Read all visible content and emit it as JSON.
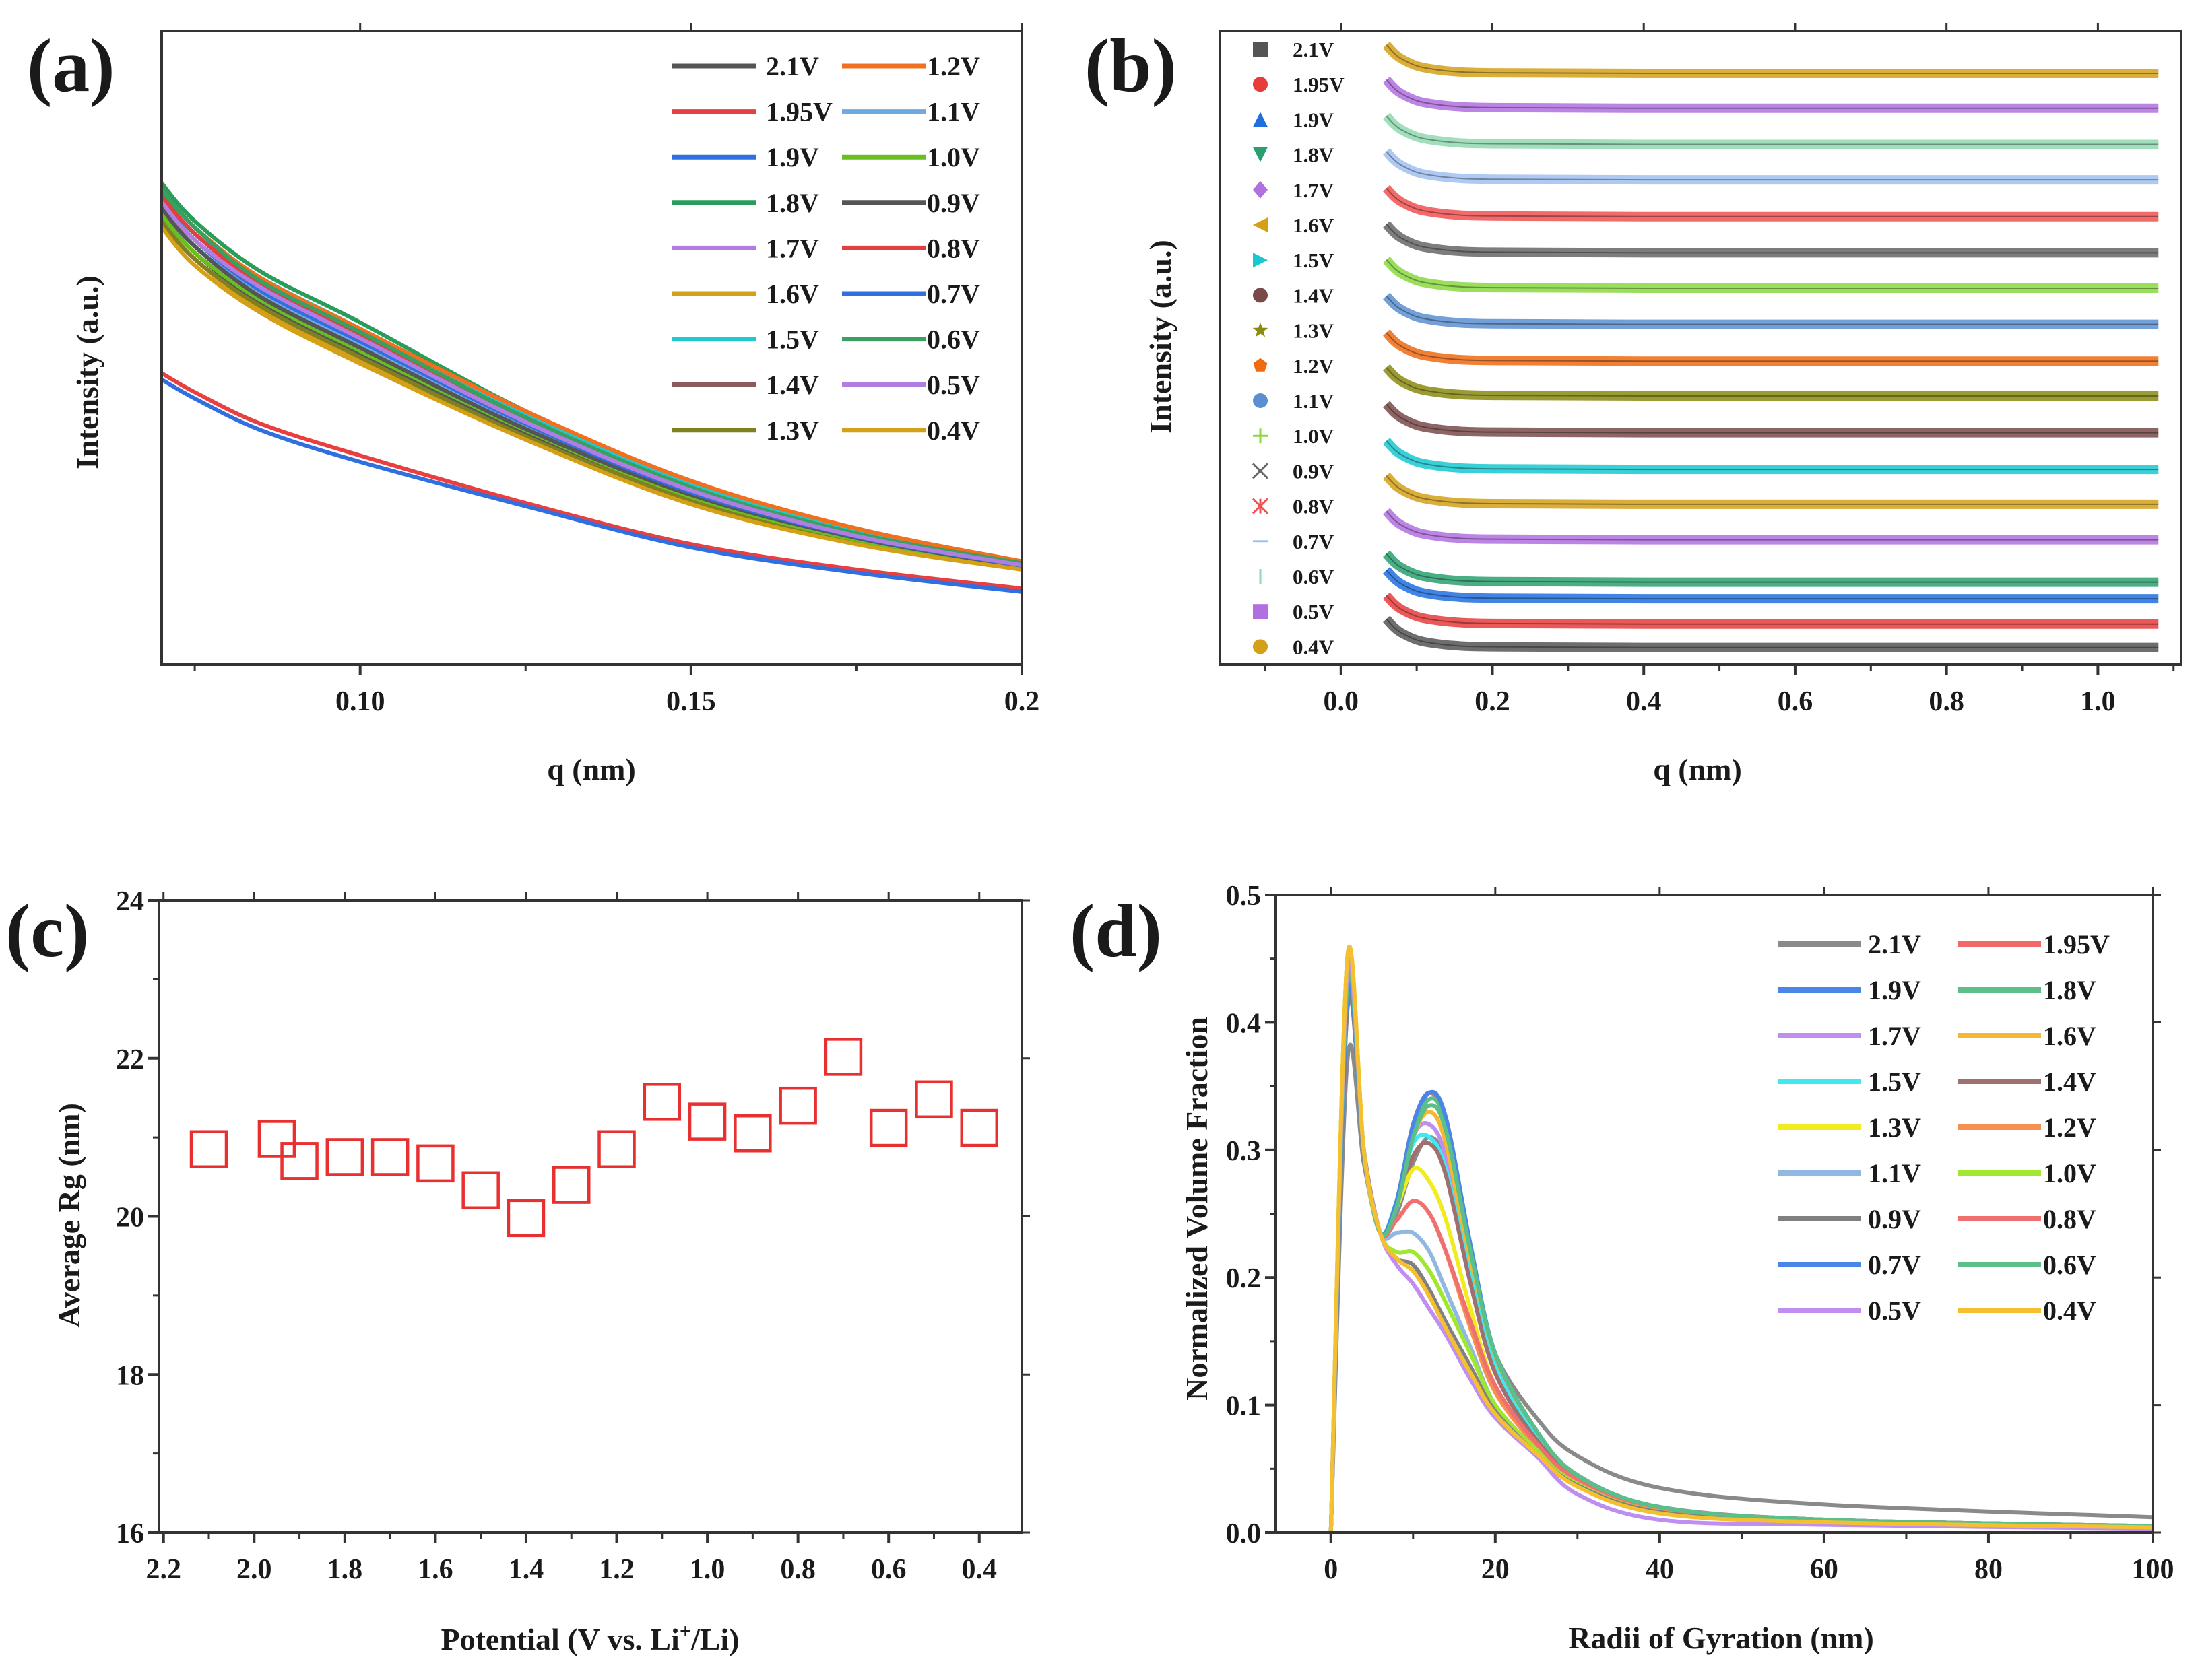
{
  "panel_labels": {
    "a": "(a)",
    "b": "(b)",
    "c": "(c)",
    "d": "(d)"
  },
  "chart_data": [
    {
      "id": "a",
      "type": "line",
      "xlabel": "q (nm)",
      "ylabel": "Intensity (a.u.)",
      "xlim": [
        0.07,
        0.2
      ],
      "ylim": [
        0,
        1
      ],
      "xticks": [
        0.1,
        0.15,
        0.2
      ],
      "xtick_labels": [
        "0.10",
        "0.15",
        "0.2"
      ],
      "legend_placement": "top-right",
      "x": [
        0.07,
        0.075,
        0.085,
        0.1,
        0.125,
        0.15,
        0.175,
        0.2
      ],
      "series": [
        {
          "name": "2.1V",
          "color": "#555555",
          "values": [
            0.71,
            0.65,
            0.57,
            0.49,
            0.365,
            0.26,
            0.195,
            0.152
          ]
        },
        {
          "name": "1.95V",
          "color": "#e84040",
          "values": [
            0.46,
            0.43,
            0.38,
            0.33,
            0.255,
            0.19,
            0.15,
            0.12
          ]
        },
        {
          "name": "1.9V",
          "color": "#2f6fe0",
          "values": [
            0.45,
            0.42,
            0.37,
            0.32,
            0.25,
            0.185,
            0.145,
            0.115
          ]
        },
        {
          "name": "1.8V",
          "color": "#2a9d5a",
          "values": [
            0.76,
            0.7,
            0.62,
            0.54,
            0.4,
            0.285,
            0.21,
            0.16
          ]
        },
        {
          "name": "1.7V",
          "color": "#b07ee0",
          "values": [
            0.74,
            0.68,
            0.6,
            0.52,
            0.39,
            0.28,
            0.205,
            0.158
          ]
        },
        {
          "name": "1.6V",
          "color": "#d4a017",
          "values": [
            0.7,
            0.64,
            0.56,
            0.48,
            0.36,
            0.255,
            0.19,
            0.15
          ]
        },
        {
          "name": "1.5V",
          "color": "#20c8d0",
          "values": [
            0.74,
            0.68,
            0.61,
            0.53,
            0.395,
            0.285,
            0.21,
            0.16
          ]
        },
        {
          "name": "1.4V",
          "color": "#8b5a5a",
          "values": [
            0.72,
            0.66,
            0.58,
            0.5,
            0.37,
            0.265,
            0.198,
            0.155
          ]
        },
        {
          "name": "1.3V",
          "color": "#808020",
          "values": [
            0.7,
            0.64,
            0.565,
            0.485,
            0.36,
            0.26,
            0.193,
            0.152
          ]
        },
        {
          "name": "1.2V",
          "color": "#f07020",
          "values": [
            0.75,
            0.69,
            0.61,
            0.53,
            0.4,
            0.29,
            0.215,
            0.163
          ]
        },
        {
          "name": "1.1V",
          "color": "#6fa8dc",
          "values": [
            0.72,
            0.66,
            0.585,
            0.505,
            0.375,
            0.27,
            0.2,
            0.156
          ]
        },
        {
          "name": "1.0V",
          "color": "#6abf20",
          "values": [
            0.71,
            0.65,
            0.575,
            0.495,
            0.37,
            0.265,
            0.197,
            0.153
          ]
        },
        {
          "name": "0.9V",
          "color": "#555555",
          "values": [
            0.72,
            0.66,
            0.58,
            0.5,
            0.372,
            0.268,
            0.2,
            0.155
          ]
        },
        {
          "name": "0.8V",
          "color": "#e04040",
          "values": [
            0.74,
            0.68,
            0.6,
            0.52,
            0.385,
            0.278,
            0.205,
            0.158
          ]
        },
        {
          "name": "0.7V",
          "color": "#2f6fe0",
          "values": [
            0.73,
            0.67,
            0.59,
            0.51,
            0.38,
            0.272,
            0.202,
            0.156
          ]
        },
        {
          "name": "0.6V",
          "color": "#3aa060",
          "values": [
            0.75,
            0.69,
            0.605,
            0.525,
            0.39,
            0.28,
            0.207,
            0.16
          ]
        },
        {
          "name": "0.5V",
          "color": "#b07ee0",
          "values": [
            0.73,
            0.67,
            0.595,
            0.515,
            0.383,
            0.275,
            0.203,
            0.157
          ]
        },
        {
          "name": "0.4V",
          "color": "#d4a017",
          "values": [
            0.69,
            0.63,
            0.555,
            0.475,
            0.355,
            0.253,
            0.19,
            0.15
          ]
        }
      ]
    },
    {
      "id": "b",
      "type": "line",
      "xlabel": "q (nm)",
      "ylabel": "Intensity (a.u.)",
      "xlim": [
        -0.16,
        1.11
      ],
      "ylim": [
        0,
        1
      ],
      "xticks": [
        0.0,
        0.2,
        0.4,
        0.6,
        0.8,
        1.0
      ],
      "xtick_labels": [
        "0.0",
        "0.2",
        "0.4",
        "0.6",
        "0.8",
        "1.0"
      ],
      "legend_placement": "left",
      "x": [
        0.06,
        0.07,
        0.08,
        0.1,
        0.12,
        0.15,
        0.2,
        0.4,
        0.7,
        1.08
      ],
      "profile": [
        0.045,
        0.032,
        0.023,
        0.012,
        0.007,
        0.003,
        0.001,
        0,
        0,
        0
      ],
      "series": [
        {
          "name": "2.1V",
          "color": "#555555",
          "marker": "square",
          "level": 0.027
        },
        {
          "name": "1.95V",
          "color": "#e83b3b",
          "marker": "circle",
          "level": 0.064
        },
        {
          "name": "1.9V",
          "color": "#1f6fe0",
          "marker": "triangle-up",
          "level": 0.104
        },
        {
          "name": "1.8V",
          "color": "#2aa070",
          "marker": "triangle-down",
          "level": 0.13
        },
        {
          "name": "1.7V",
          "color": "#b070e0",
          "marker": "diamond",
          "level": 0.197
        },
        {
          "name": "1.6V",
          "color": "#d4a017",
          "marker": "triangle-left",
          "level": 0.253
        },
        {
          "name": "1.5V",
          "color": "#18c8d0",
          "marker": "triangle-right",
          "level": 0.308
        },
        {
          "name": "1.4V",
          "color": "#7a4a4a",
          "marker": "circle",
          "level": 0.366
        },
        {
          "name": "1.3V",
          "color": "#8a8a10",
          "marker": "star",
          "level": 0.424
        },
        {
          "name": "1.2V",
          "color": "#f06a10",
          "marker": "pentagon",
          "level": 0.479
        },
        {
          "name": "1.1V",
          "color": "#5b8fd0",
          "marker": "circle",
          "level": 0.537
        },
        {
          "name": "1.0V",
          "color": "#8ad840",
          "marker": "plus",
          "level": 0.594
        },
        {
          "name": "0.9V",
          "color": "#666666",
          "marker": "cross",
          "level": 0.65
        },
        {
          "name": "0.8V",
          "color": "#f05050",
          "marker": "asterisk",
          "level": 0.707
        },
        {
          "name": "0.7V",
          "color": "#a0c0f0",
          "marker": "dash",
          "level": 0.765
        },
        {
          "name": "0.6V",
          "color": "#90d8b0",
          "marker": "bar",
          "level": 0.821
        },
        {
          "name": "0.5V",
          "color": "#b070e0",
          "marker": "square",
          "level": 0.878
        },
        {
          "name": "0.4V",
          "color": "#d4a017",
          "marker": "circle",
          "level": 0.933
        }
      ]
    },
    {
      "id": "c",
      "type": "scatter",
      "xlabel": "Potential (V vs. Li",
      "xlabel_sup": "+",
      "xlabel_tail": "/Li)",
      "ylabel": "Average Rg (nm)",
      "xlim": [
        2.21,
        0.306
      ],
      "ylim": [
        16,
        24
      ],
      "xticks": [
        2.2,
        2.0,
        1.8,
        1.6,
        1.4,
        1.2,
        1.0,
        0.8,
        0.6,
        0.4
      ],
      "xtick_labels": [
        "2.2",
        "2.0",
        "1.8",
        "1.6",
        "1.4",
        "1.2",
        "1.0",
        "0.8",
        "0.6",
        "0.4"
      ],
      "yticks": [
        16,
        18,
        20,
        22,
        24
      ],
      "ytick_labels": [
        "16",
        "18",
        "20",
        "22",
        "24"
      ],
      "color": "#e83030",
      "x": [
        2.1,
        1.95,
        1.9,
        1.8,
        1.7,
        1.6,
        1.5,
        1.4,
        1.3,
        1.2,
        1.1,
        1.0,
        0.9,
        0.8,
        0.7,
        0.6,
        0.5,
        0.4
      ],
      "y": [
        20.85,
        20.98,
        20.7,
        20.75,
        20.75,
        20.67,
        20.33,
        19.98,
        20.4,
        20.85,
        21.45,
        21.2,
        21.05,
        21.4,
        22.02,
        21.12,
        21.48,
        21.12
      ]
    },
    {
      "id": "d",
      "type": "line",
      "xlabel": "Radii of Gyration (nm)",
      "ylabel": "Normalized Volume Fraction",
      "xlim": [
        -6.7,
        100
      ],
      "ylim": [
        0,
        0.5
      ],
      "xticks": [
        0,
        20,
        40,
        60,
        80,
        100
      ],
      "xtick_labels": [
        "0",
        "20",
        "40",
        "60",
        "80",
        "100"
      ],
      "yticks": [
        0,
        0.1,
        0.2,
        0.3,
        0.4,
        0.5
      ],
      "ytick_labels": [
        "0.0",
        "0.1",
        "0.2",
        "0.3",
        "0.4",
        "0.5"
      ],
      "legend_placement": "top-right",
      "x": [
        0,
        2,
        4,
        6,
        8,
        10,
        12,
        14,
        17,
        20,
        25,
        30,
        40,
        60,
        100
      ],
      "series": [
        {
          "name": "2.1V",
          "color": "#8a8a8a",
          "values": [
            0,
            0.37,
            0.29,
            0.235,
            0.25,
            0.29,
            0.31,
            0.29,
            0.21,
            0.14,
            0.09,
            0.06,
            0.035,
            0.022,
            0.012
          ]
        },
        {
          "name": "1.95V",
          "color": "#f06868",
          "values": [
            0,
            0.42,
            0.3,
            0.235,
            0.26,
            0.32,
            0.345,
            0.32,
            0.22,
            0.14,
            0.08,
            0.045,
            0.02,
            0.01,
            0.005
          ]
        },
        {
          "name": "1.9V",
          "color": "#4a86e8",
          "values": [
            0,
            0.41,
            0.3,
            0.235,
            0.255,
            0.315,
            0.345,
            0.325,
            0.225,
            0.14,
            0.08,
            0.045,
            0.02,
            0.01,
            0.005
          ]
        },
        {
          "name": "1.8V",
          "color": "#5bbf8a",
          "values": [
            0,
            0.43,
            0.3,
            0.235,
            0.255,
            0.31,
            0.34,
            0.32,
            0.22,
            0.14,
            0.08,
            0.045,
            0.02,
            0.01,
            0.005
          ]
        },
        {
          "name": "1.7V",
          "color": "#c08ef0",
          "values": [
            0,
            0.44,
            0.3,
            0.235,
            0.255,
            0.31,
            0.32,
            0.295,
            0.21,
            0.135,
            0.078,
            0.044,
            0.02,
            0.01,
            0.005
          ]
        },
        {
          "name": "1.6V",
          "color": "#f5b830",
          "values": [
            0,
            0.45,
            0.3,
            0.235,
            0.26,
            0.31,
            0.33,
            0.305,
            0.21,
            0.135,
            0.078,
            0.044,
            0.02,
            0.01,
            0.005
          ]
        },
        {
          "name": "1.5V",
          "color": "#40e8f0",
          "values": [
            0,
            0.44,
            0.3,
            0.235,
            0.26,
            0.305,
            0.31,
            0.285,
            0.2,
            0.13,
            0.075,
            0.043,
            0.018,
            0.009,
            0.004
          ]
        },
        {
          "name": "1.4V",
          "color": "#a07070",
          "values": [
            0,
            0.43,
            0.3,
            0.235,
            0.255,
            0.295,
            0.305,
            0.28,
            0.195,
            0.125,
            0.073,
            0.042,
            0.018,
            0.009,
            0.004
          ]
        },
        {
          "name": "1.3V",
          "color": "#f0ec20",
          "values": [
            0,
            0.45,
            0.3,
            0.235,
            0.255,
            0.285,
            0.275,
            0.245,
            0.175,
            0.115,
            0.07,
            0.04,
            0.017,
            0.009,
            0.004
          ]
        },
        {
          "name": "1.2V",
          "color": "#f59050",
          "values": [
            0,
            0.44,
            0.3,
            0.235,
            0.245,
            0.26,
            0.25,
            0.22,
            0.16,
            0.11,
            0.068,
            0.04,
            0.017,
            0.009,
            0.004
          ]
        },
        {
          "name": "1.1V",
          "color": "#90b8e0",
          "values": [
            0,
            0.43,
            0.3,
            0.235,
            0.235,
            0.235,
            0.22,
            0.19,
            0.145,
            0.1,
            0.065,
            0.038,
            0.016,
            0.008,
            0.004
          ]
        },
        {
          "name": "1.0V",
          "color": "#a0e830",
          "values": [
            0,
            0.45,
            0.3,
            0.235,
            0.22,
            0.22,
            0.205,
            0.18,
            0.14,
            0.1,
            0.065,
            0.038,
            0.016,
            0.008,
            0.004
          ]
        },
        {
          "name": "0.9V",
          "color": "#808080",
          "values": [
            0,
            0.41,
            0.3,
            0.235,
            0.215,
            0.21,
            0.19,
            0.165,
            0.13,
            0.095,
            0.062,
            0.037,
            0.016,
            0.008,
            0.004
          ]
        },
        {
          "name": "0.8V",
          "color": "#f07070",
          "values": [
            0,
            0.43,
            0.3,
            0.235,
            0.245,
            0.26,
            0.25,
            0.22,
            0.165,
            0.115,
            0.07,
            0.042,
            0.02,
            0.01,
            0.005
          ]
        },
        {
          "name": "0.7V",
          "color": "#4a86e8",
          "values": [
            0,
            0.42,
            0.3,
            0.235,
            0.26,
            0.32,
            0.345,
            0.325,
            0.225,
            0.14,
            0.08,
            0.045,
            0.02,
            0.01,
            0.005
          ]
        },
        {
          "name": "0.6V",
          "color": "#5bbf8a",
          "values": [
            0,
            0.43,
            0.3,
            0.235,
            0.255,
            0.31,
            0.335,
            0.315,
            0.22,
            0.14,
            0.08,
            0.045,
            0.02,
            0.01,
            0.005
          ]
        },
        {
          "name": "0.5V",
          "color": "#c08ef0",
          "values": [
            0,
            0.44,
            0.3,
            0.235,
            0.21,
            0.195,
            0.175,
            0.155,
            0.12,
            0.09,
            0.06,
            0.03,
            0.01,
            0.006,
            0.003
          ]
        },
        {
          "name": "0.4V",
          "color": "#f5c030",
          "values": [
            0,
            0.45,
            0.3,
            0.235,
            0.215,
            0.205,
            0.185,
            0.16,
            0.125,
            0.093,
            0.062,
            0.036,
            0.015,
            0.008,
            0.004
          ]
        }
      ]
    }
  ]
}
